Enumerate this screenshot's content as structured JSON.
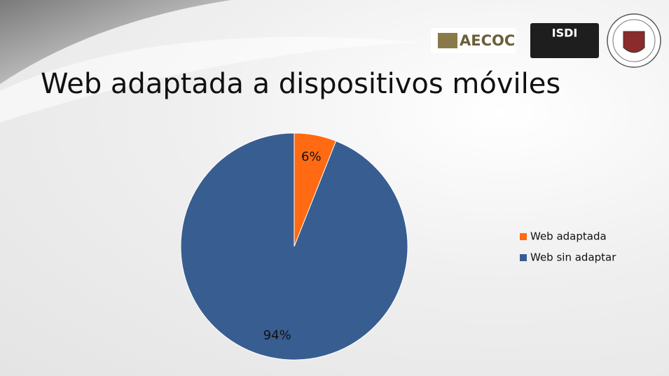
{
  "logos": [
    "AECOC",
    "ISDI"
  ],
  "chart_data": {
    "type": "pie",
    "title": "Web adaptada a dispositivos  móviles",
    "categories": [
      "Web adaptada",
      "Web sin adaptar"
    ],
    "values": [
      6,
      94
    ],
    "value_labels": [
      "6%",
      "94%"
    ],
    "colors": [
      "#ff6a13",
      "#385d91"
    ],
    "legend": "right"
  }
}
